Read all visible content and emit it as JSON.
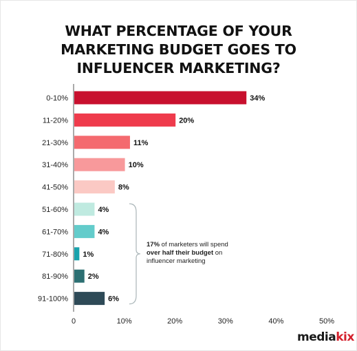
{
  "title_lines": [
    "WHAT PERCENTAGE OF YOUR",
    "MARKETING BUDGET GOES TO",
    "INFLUENCER MARKETING?"
  ],
  "annotation": {
    "bold1": "17%",
    "text1": " of marketers will spend",
    "bold2": "over half their budget",
    "text2": " on influencer marketing"
  },
  "logo": {
    "part1": "media",
    "part2": "kix"
  },
  "chart_data": {
    "type": "bar",
    "orientation": "horizontal",
    "title": "WHAT PERCENTAGE OF YOUR MARKETING BUDGET GOES TO INFLUENCER MARKETING?",
    "categories": [
      "0-10%",
      "11-20%",
      "21-30%",
      "31-40%",
      "41-50%",
      "51-60%",
      "61-70%",
      "71-80%",
      "81-90%",
      "91-100%"
    ],
    "values": [
      34,
      20,
      11,
      10,
      8,
      4,
      4,
      1,
      2,
      6
    ],
    "value_labels": [
      "34%",
      "20%",
      "11%",
      "10%",
      "8%",
      "4%",
      "4%",
      "1%",
      "2%",
      "6%"
    ],
    "colors": [
      "#c8102e",
      "#ef3b4c",
      "#f46a6f",
      "#f8999b",
      "#fbc9c4",
      "#bfeae0",
      "#63cccb",
      "#1aa3ad",
      "#2c6f72",
      "#2e4a57"
    ],
    "xlim": [
      0,
      50
    ],
    "xticks": [
      0,
      10,
      20,
      30,
      40,
      50
    ],
    "xtick_labels": [
      "0",
      "10%",
      "20%",
      "30%",
      "40%",
      "50%"
    ],
    "xlabel": "",
    "ylabel": "",
    "grid": false,
    "legend": "none"
  }
}
